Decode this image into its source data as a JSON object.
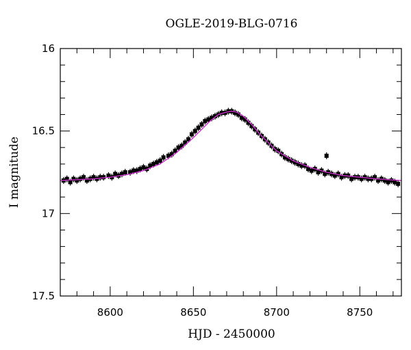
{
  "chart_data": {
    "type": "scatter",
    "title": "OGLE-2019-BLG-0716",
    "xlabel": "HJD - 2450000",
    "ylabel": "I magnitude",
    "xlim": [
      8570,
      8775
    ],
    "ylim": [
      16.0,
      17.5
    ],
    "y_inverted": true,
    "x_ticks": [
      8600,
      8650,
      8700,
      8750
    ],
    "y_ticks": [
      16,
      16.5,
      17,
      17.5
    ],
    "y_tick_labels": [
      "16",
      "16.5",
      "17",
      "17.5"
    ],
    "x_minor_step": 10,
    "y_minor_step": 0.1,
    "grid": false,
    "marker_color": "#000000",
    "model_color": "#cc2fcc",
    "series": [
      {
        "kind": "observations",
        "x": [
          8572,
          8574,
          8576,
          8578,
          8580,
          8582,
          8584,
          8586,
          8588,
          8590,
          8592,
          8594,
          8596,
          8599,
          8601,
          8603,
          8605,
          8607,
          8609,
          8612,
          8614,
          8616,
          8618,
          8620,
          8622,
          8624,
          8626,
          8628,
          8630,
          8632,
          8635,
          8637,
          8639,
          8641,
          8643,
          8645,
          8647,
          8649,
          8651,
          8653,
          8655,
          8657,
          8659,
          8661,
          8663,
          8665,
          8667,
          8669,
          8671,
          8673,
          8675,
          8677,
          8679,
          8681,
          8683,
          8685,
          8687,
          8689,
          8691,
          8693,
          8695,
          8697,
          8699,
          8701,
          8703,
          8705,
          8707,
          8709,
          8711,
          8713,
          8715,
          8717,
          8719,
          8721,
          8723,
          8725,
          8727,
          8729,
          8731,
          8733,
          8735,
          8737,
          8739,
          8741,
          8743,
          8745,
          8747,
          8749,
          8751,
          8753,
          8755,
          8757,
          8759,
          8761,
          8763,
          8765,
          8767,
          8769,
          8771,
          8773
        ],
        "y": [
          16.8,
          16.79,
          16.81,
          16.79,
          16.8,
          16.79,
          16.78,
          16.8,
          16.79,
          16.78,
          16.79,
          16.78,
          16.78,
          16.77,
          16.78,
          16.76,
          16.77,
          16.76,
          16.75,
          16.75,
          16.74,
          16.74,
          16.73,
          16.72,
          16.73,
          16.71,
          16.7,
          16.69,
          16.68,
          16.66,
          16.65,
          16.64,
          16.62,
          16.6,
          16.59,
          16.57,
          16.55,
          16.52,
          16.5,
          16.48,
          16.46,
          16.44,
          16.43,
          16.42,
          16.41,
          16.4,
          16.39,
          16.39,
          16.38,
          16.38,
          16.39,
          16.4,
          16.42,
          16.43,
          16.45,
          16.47,
          16.49,
          16.51,
          16.53,
          16.55,
          16.57,
          16.59,
          16.61,
          16.62,
          16.64,
          16.66,
          16.67,
          16.68,
          16.69,
          16.7,
          16.71,
          16.71,
          16.73,
          16.74,
          16.73,
          16.75,
          16.74,
          16.76,
          16.75,
          16.76,
          16.77,
          16.76,
          16.78,
          16.77,
          16.77,
          16.79,
          16.78,
          16.78,
          16.79,
          16.78,
          16.79,
          16.79,
          16.78,
          16.8,
          16.79,
          16.8,
          16.81,
          16.8,
          16.81,
          16.82
        ]
      },
      {
        "kind": "model",
        "x": [
          8570,
          8580,
          8590,
          8600,
          8610,
          8620,
          8630,
          8640,
          8650,
          8655,
          8660,
          8665,
          8670,
          8673,
          8676,
          8680,
          8685,
          8690,
          8695,
          8700,
          8710,
          8720,
          8730,
          8740,
          8750,
          8760,
          8775
        ],
        "y": [
          16.8,
          16.795,
          16.79,
          16.78,
          16.765,
          16.74,
          16.7,
          16.63,
          16.54,
          16.49,
          16.44,
          16.4,
          16.385,
          16.38,
          16.385,
          16.41,
          16.46,
          16.52,
          16.57,
          16.62,
          16.68,
          16.72,
          16.75,
          16.77,
          16.78,
          16.79,
          16.8
        ]
      }
    ],
    "outliers": [
      {
        "x": 8730,
        "y": 16.65
      }
    ]
  }
}
